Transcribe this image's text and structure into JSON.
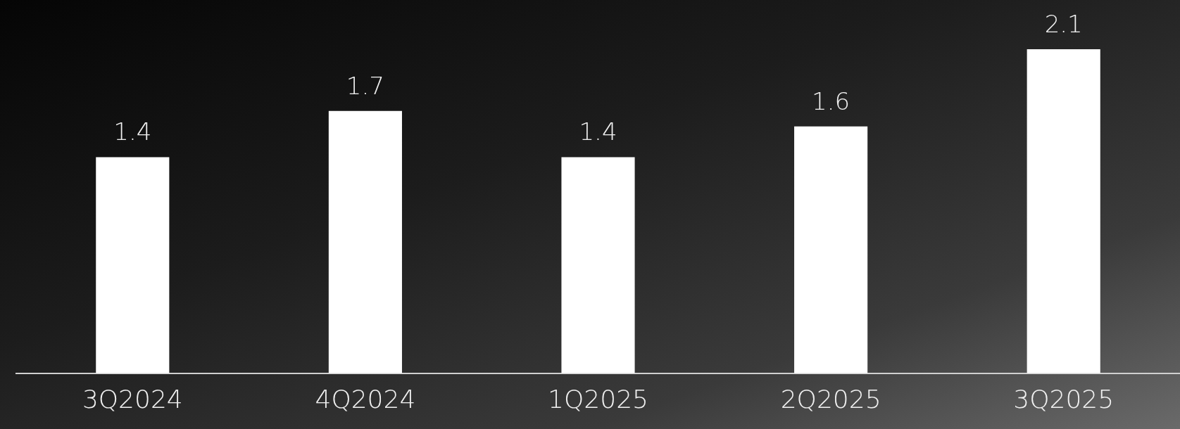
{
  "chart_data": {
    "type": "bar",
    "categories": [
      "3Q2024",
      "4Q2024",
      "1Q2025",
      "2Q2025",
      "3Q2025"
    ],
    "values": [
      1.4,
      1.7,
      1.4,
      1.6,
      2.1
    ],
    "color": "#ffffff",
    "data_labels": true
  }
}
